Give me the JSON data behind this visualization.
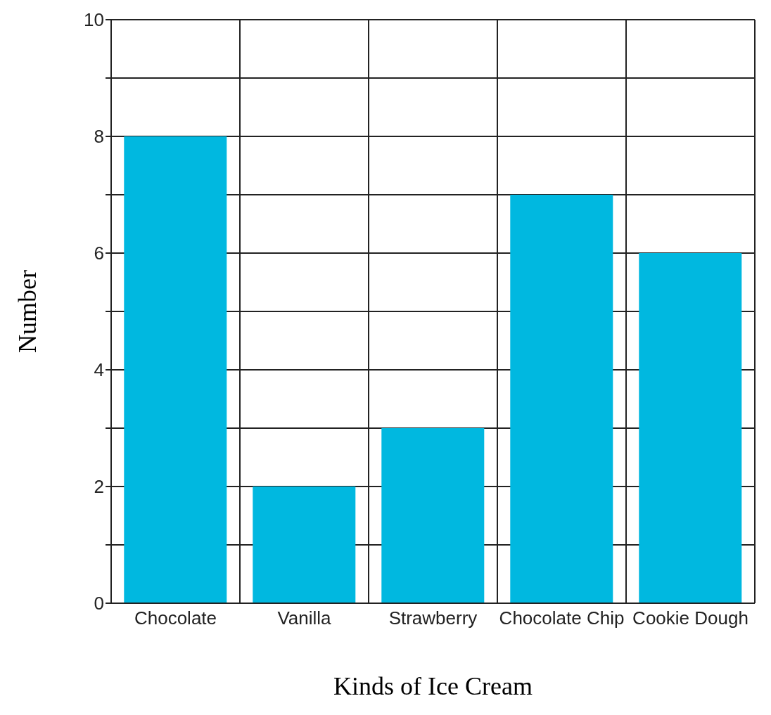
{
  "chart_data": {
    "type": "bar",
    "xlabel": "Kinds of Ice Cream",
    "ylabel": "Number",
    "categories": [
      "Chocolate",
      "Vanilla",
      "Strawberry",
      "Chocolate Chip",
      "Cookie Dough"
    ],
    "values": [
      8,
      2,
      3,
      7,
      6
    ],
    "color": "#00b8e0",
    "ylim": [
      0,
      10
    ],
    "yticks": [
      0,
      {
        "value": 1,
        "label": null
      },
      2,
      {
        "value": 3,
        "label": null
      },
      4,
      {
        "value": 5,
        "label": null
      },
      6,
      {
        "value": 7,
        "label": null
      },
      8,
      {
        "value": 9,
        "label": null
      },
      10
    ],
    "grid": true
  }
}
